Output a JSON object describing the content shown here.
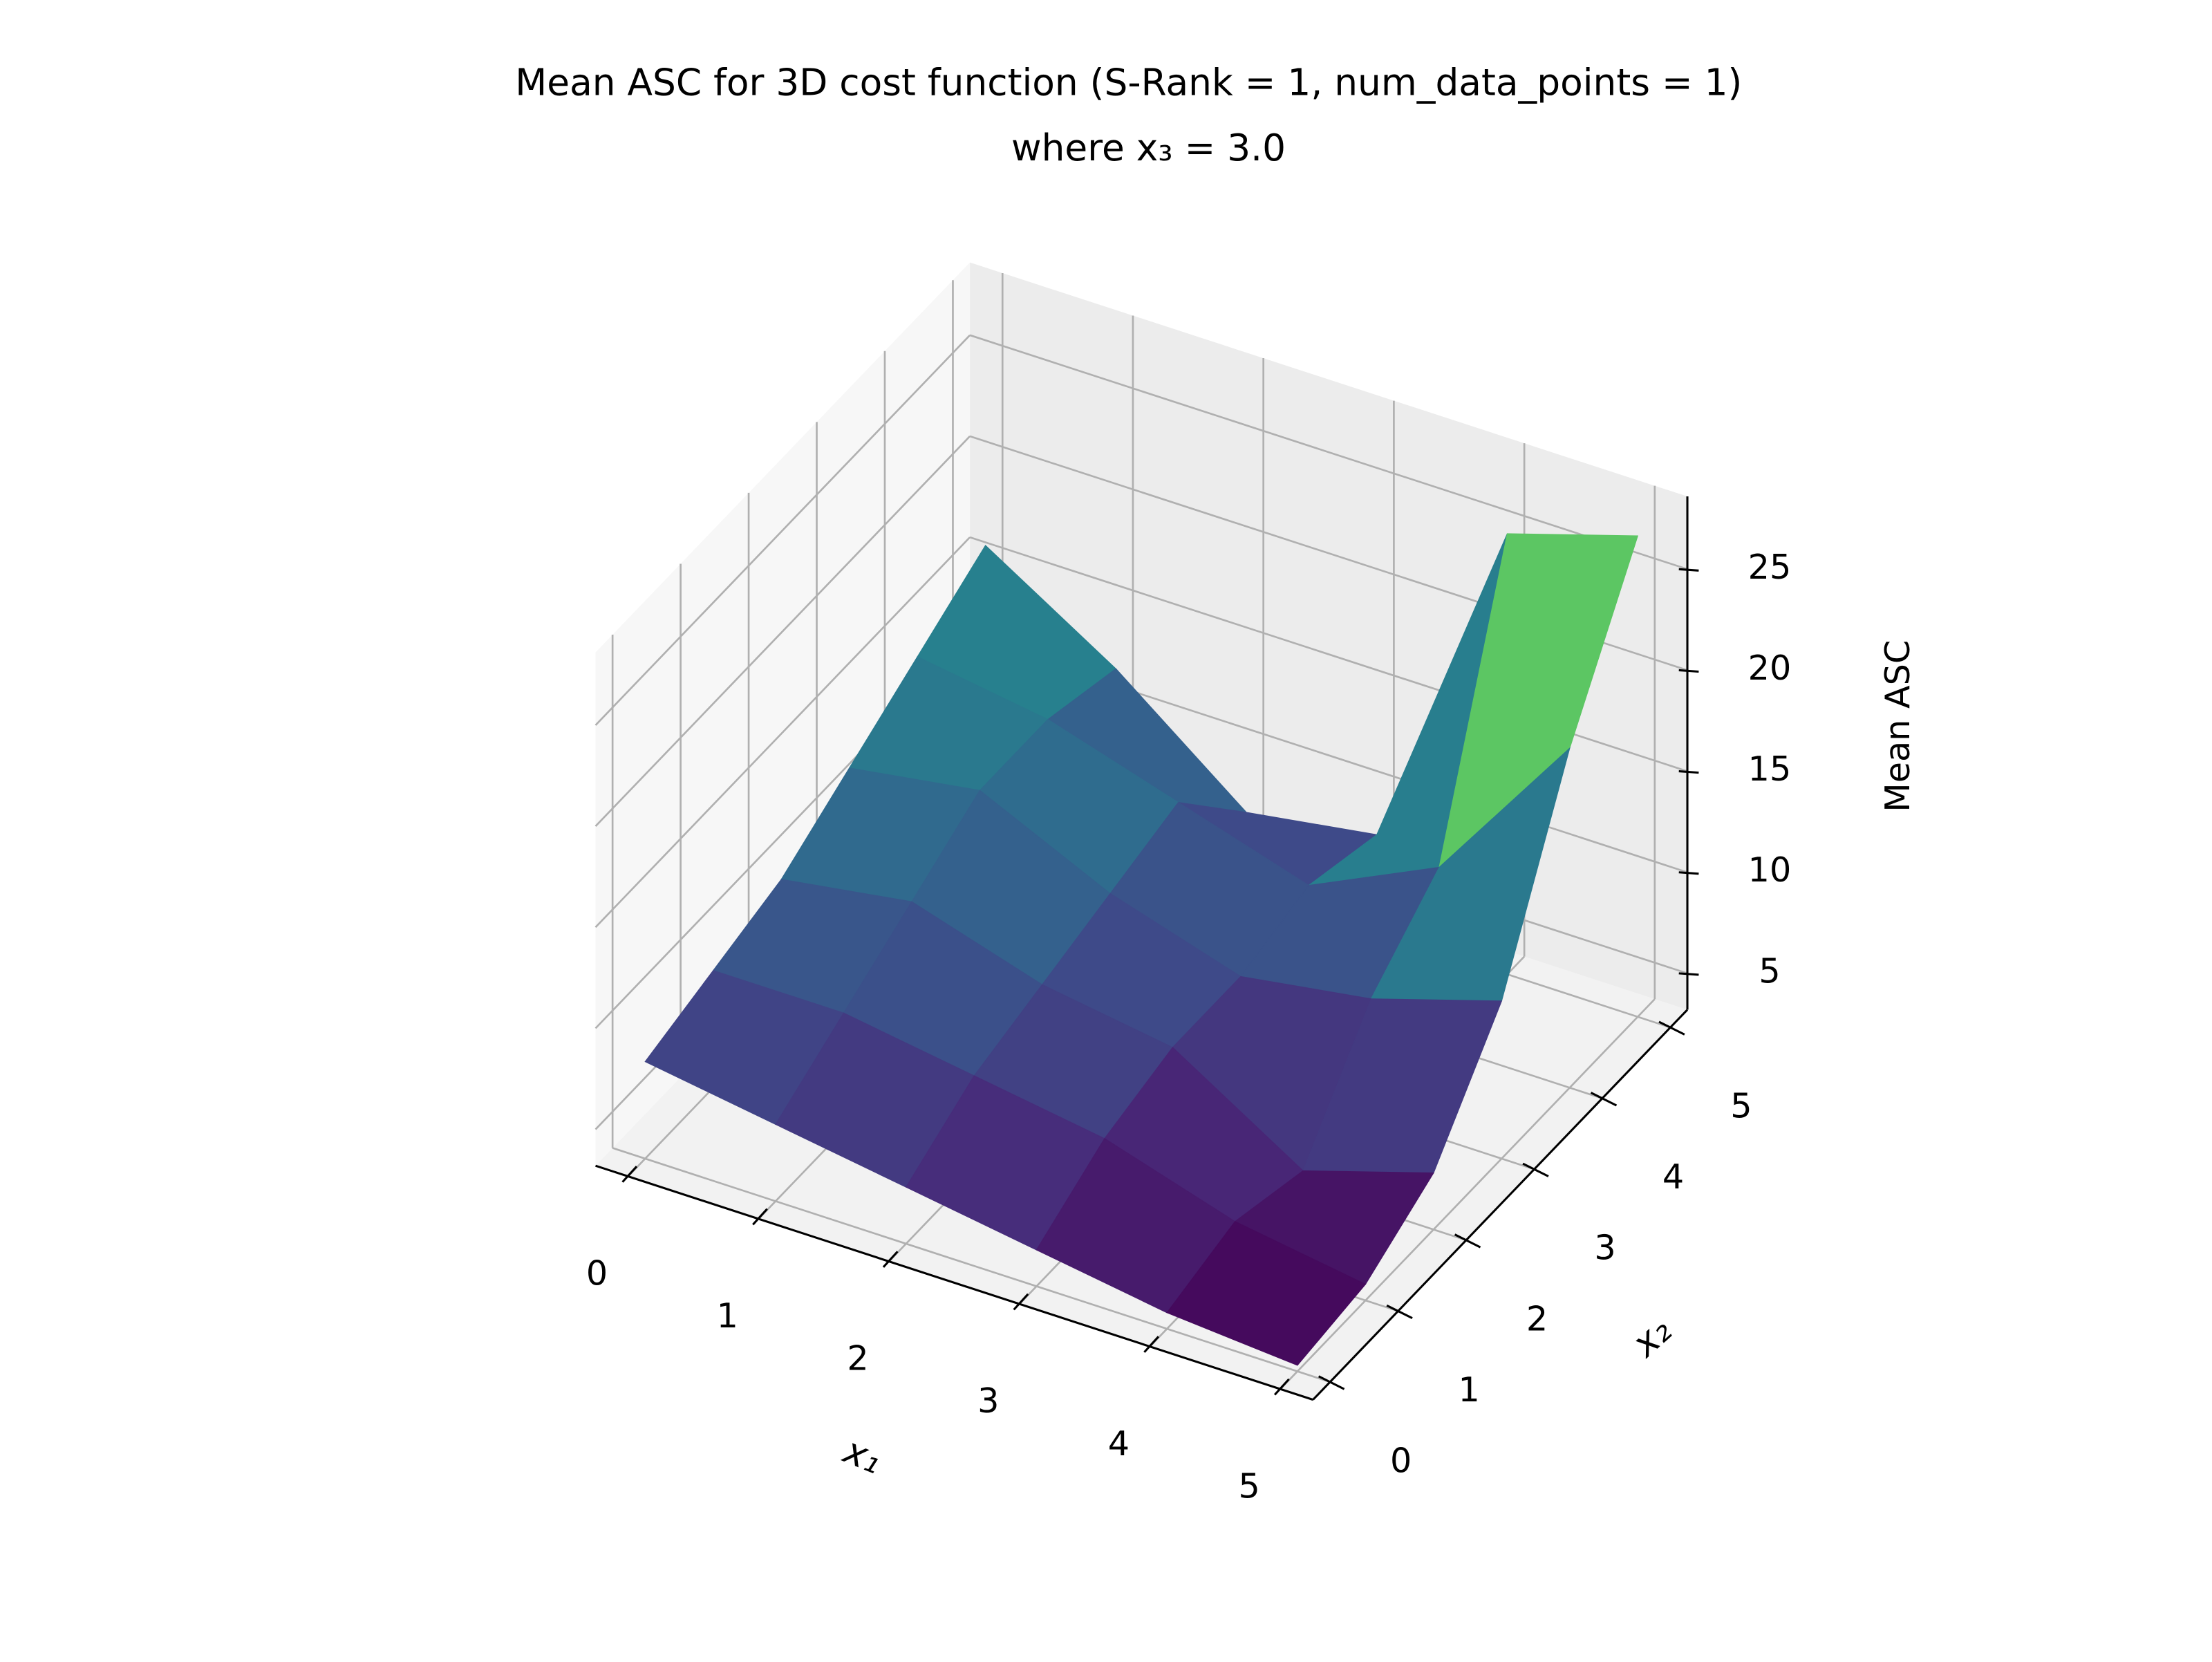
{
  "chart_data": {
    "type": "surface3d",
    "title": "Mean ASC for 3D cost function (S-Rank = 1, num_data_points = 1)",
    "subtitle": "where x₃ = 3.0",
    "xlabel": "x₁",
    "ylabel": "x₂",
    "zlabel": "Mean ASC",
    "x": [
      0,
      1,
      2,
      3,
      4,
      5
    ],
    "y": [
      0,
      1,
      2,
      3,
      4,
      5
    ],
    "z": [
      [
        8,
        7,
        6,
        5,
        4,
        3.5
      ],
      [
        9,
        9,
        8,
        7,
        5,
        4
      ],
      [
        10,
        11,
        9,
        8,
        4,
        6
      ],
      [
        12,
        13,
        10,
        8,
        9,
        11
      ],
      [
        14,
        13,
        11,
        9,
        12,
        20
      ],
      [
        16,
        12,
        7,
        8,
        25,
        27
      ]
    ],
    "xlim": [
      -0.25,
      5.25
    ],
    "ylim": [
      -0.25,
      5.25
    ],
    "zlim": [
      3.2,
      28.6
    ],
    "xticks": [
      0,
      1,
      2,
      3,
      4,
      5
    ],
    "yticks": [
      0,
      1,
      2,
      3,
      4,
      5
    ],
    "zticks": [
      5,
      10,
      15,
      20,
      25
    ],
    "colormap": "viridis",
    "grid": true
  }
}
